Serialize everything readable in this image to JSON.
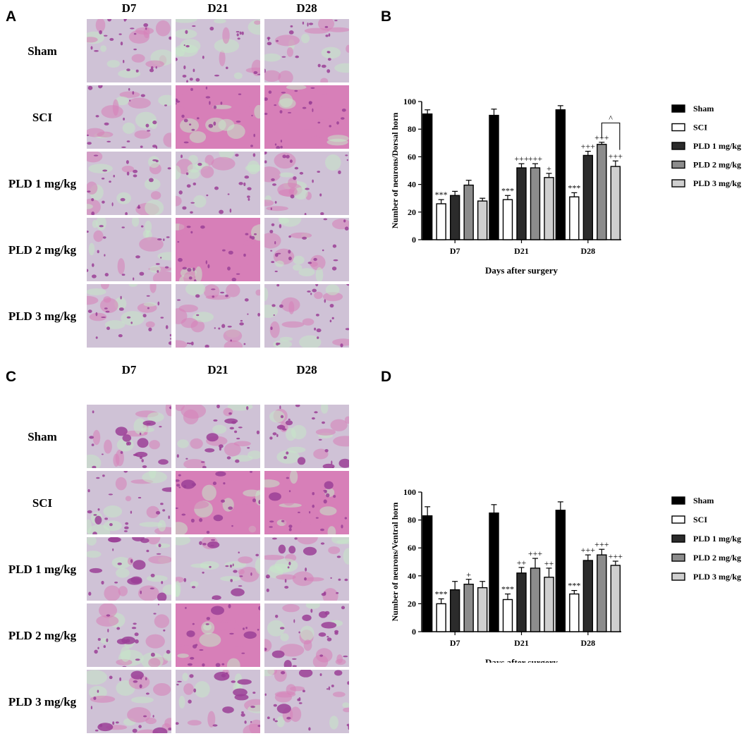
{
  "panels": {
    "A": {
      "letter": "A",
      "columns": [
        "D7",
        "D21",
        "D28"
      ],
      "rows": [
        "Sham",
        "SCI",
        "PLD 1 mg/kg",
        "PLD 2 mg/kg",
        "PLD 3 mg/kg"
      ]
    },
    "C": {
      "letter": "C",
      "columns": [
        "D7",
        "D21",
        "D28"
      ],
      "rows": [
        "Sham",
        "SCI",
        "PLD 1 mg/kg",
        "PLD 2 mg/kg",
        "PLD 3 mg/kg"
      ]
    },
    "B": {
      "letter": "B"
    },
    "D": {
      "letter": "D"
    }
  },
  "colors": {
    "tissue_base": "#cfc2d6",
    "stain_purple": "#9b3f97",
    "stain_pink": "#d77fb8",
    "stain_green": "#c7e7c8"
  },
  "chart_data": [
    {
      "type": "bar",
      "title": "",
      "xlabel": "Days after surgery",
      "ylabel": "Number of neurons/Dorsal horn",
      "ylim": [
        0,
        100
      ],
      "yticks": [
        0,
        20,
        40,
        60,
        80,
        100
      ],
      "categories": [
        "D7",
        "D21",
        "D28"
      ],
      "legend_position": "right",
      "series": [
        {
          "name": "Sham",
          "values": [
            91,
            90,
            94
          ],
          "errors": [
            3,
            4.5,
            3
          ],
          "fill": "#000000"
        },
        {
          "name": "SCI",
          "values": [
            26,
            29,
            31
          ],
          "errors": [
            3,
            3,
            3
          ],
          "fill": "#ffffff"
        },
        {
          "name": "PLD 1 mg/kg",
          "values": [
            32,
            52,
            61
          ],
          "errors": [
            3,
            3,
            3
          ],
          "fill": "#2b2b2b"
        },
        {
          "name": "PLD 2 mg/kg",
          "values": [
            39.5,
            52,
            69
          ],
          "errors": [
            3.5,
            3,
            1.5
          ],
          "fill": "#8c8c8c"
        },
        {
          "name": "PLD 3 mg/kg",
          "values": [
            28,
            45,
            53
          ],
          "errors": [
            2,
            3,
            4
          ],
          "fill": "#cfcfcf"
        }
      ],
      "annotations": [
        {
          "series": 1,
          "category": 0,
          "text": "***"
        },
        {
          "series": 1,
          "category": 1,
          "text": "***"
        },
        {
          "series": 1,
          "category": 2,
          "text": "***"
        },
        {
          "series": 2,
          "category": 1,
          "text": "+++"
        },
        {
          "series": 3,
          "category": 1,
          "text": "+++"
        },
        {
          "series": 4,
          "category": 1,
          "text": "+"
        },
        {
          "series": 2,
          "category": 2,
          "text": "+++"
        },
        {
          "series": 3,
          "category": 2,
          "text": "+++"
        },
        {
          "series": 4,
          "category": 2,
          "text": "+++"
        }
      ],
      "bracket": {
        "from_series": 3,
        "to_series": 4,
        "category": 2,
        "text": "^"
      }
    },
    {
      "type": "bar",
      "title": "",
      "xlabel": "Days after surgery",
      "ylabel": "Number of neurons/Ventral horn",
      "ylim": [
        0,
        100
      ],
      "yticks": [
        0,
        20,
        40,
        60,
        80,
        100
      ],
      "categories": [
        "D7",
        "D21",
        "D28"
      ],
      "legend_position": "right",
      "series": [
        {
          "name": "Sham",
          "values": [
            83,
            85,
            87
          ],
          "errors": [
            6.5,
            6,
            6
          ],
          "fill": "#000000"
        },
        {
          "name": "SCI",
          "values": [
            20,
            23,
            27
          ],
          "errors": [
            3.5,
            4,
            2.5
          ],
          "fill": "#ffffff"
        },
        {
          "name": "PLD 1 mg/kg",
          "values": [
            30,
            42,
            51
          ],
          "errors": [
            6,
            4,
            4
          ],
          "fill": "#2b2b2b"
        },
        {
          "name": "PLD 2 mg/kg",
          "values": [
            34,
            45.5,
            55
          ],
          "errors": [
            3.5,
            7,
            4
          ],
          "fill": "#8c8c8c"
        },
        {
          "name": "PLD 3 mg/kg",
          "values": [
            31.5,
            39,
            47.5
          ],
          "errors": [
            4.5,
            6.5,
            3
          ],
          "fill": "#cfcfcf"
        }
      ],
      "annotations": [
        {
          "series": 1,
          "category": 0,
          "text": "***"
        },
        {
          "series": 1,
          "category": 1,
          "text": "***"
        },
        {
          "series": 1,
          "category": 2,
          "text": "***"
        },
        {
          "series": 3,
          "category": 0,
          "text": "+"
        },
        {
          "series": 2,
          "category": 1,
          "text": "++"
        },
        {
          "series": 3,
          "category": 1,
          "text": "+++"
        },
        {
          "series": 4,
          "category": 1,
          "text": "++"
        },
        {
          "series": 2,
          "category": 2,
          "text": "+++"
        },
        {
          "series": 3,
          "category": 2,
          "text": "+++"
        },
        {
          "series": 4,
          "category": 2,
          "text": "+++"
        }
      ]
    }
  ]
}
